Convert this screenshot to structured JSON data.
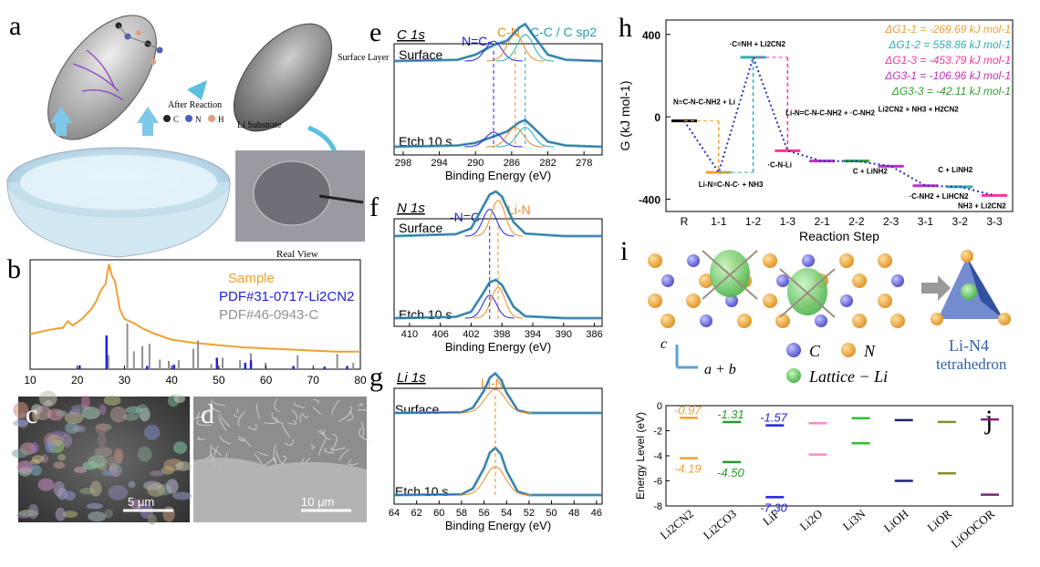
{
  "panels": {
    "a": {
      "label": "a",
      "reaction_caption": "After Reaction",
      "legend_atoms": [
        {
          "symbol": "C",
          "color": "#222222"
        },
        {
          "symbol": "N",
          "color": "#4a5fbf"
        },
        {
          "symbol": "H",
          "color": "#e0a080"
        }
      ],
      "surface_layer": "Surface Layer",
      "li_substrate": "Li Substrate",
      "real_view": "Real View"
    },
    "b": {
      "label": "b"
    },
    "c": {
      "label": "c",
      "scale": "5 μm"
    },
    "d": {
      "label": "d",
      "scale": "10 μm"
    },
    "e": {
      "label": "e",
      "title": "C 1s",
      "surface": "Surface",
      "etch": "Etch 10 s",
      "peaks": [
        "N=C-",
        "C-N",
        "C-C / C sp2"
      ]
    },
    "f": {
      "label": "f",
      "title": "N 1s",
      "surface": "Surface",
      "etch": "Etch 10 s",
      "peaks": [
        "-N=C",
        "Li-N"
      ]
    },
    "g": {
      "label": "g",
      "title": "Li 1s",
      "surface": "Surface",
      "etch": "Etch 10 s",
      "peaks": [
        "Li-N"
      ]
    },
    "h": {
      "label": "h"
    },
    "i": {
      "label": "i",
      "axis_c": "c",
      "axis_ab": "a + b",
      "legend": [
        "C",
        "N",
        "Lattice − Li"
      ],
      "tetra_title": "Li-N4",
      "tetra_sub": "tetrahedron"
    },
    "j": {
      "label": "j"
    }
  },
  "colors": {
    "orange": "#f0a030",
    "blue": "#2020e0",
    "gray": "#909090",
    "teal": "#30b0b0",
    "green": "#30a030",
    "magenta": "#e040c0",
    "pink": "#ff6699",
    "navy": "#222266",
    "olive": "#8a8a30",
    "purple": "#802080"
  },
  "chart_data": [
    {
      "id": "b",
      "type": "line",
      "title": "",
      "xlabel": "",
      "ylabel": "",
      "xlim": [
        10,
        80
      ],
      "xticks": [
        10,
        20,
        30,
        40,
        50,
        60,
        70,
        80
      ],
      "legend": [
        "Sample",
        "PDF#31-0717-Li2CN2",
        "PDF#46-0943-C"
      ],
      "series": [
        {
          "name": "Sample",
          "x": [
            10,
            14,
            17,
            18,
            19,
            21,
            23,
            24,
            25,
            26,
            26.7,
            27.3,
            28,
            29,
            30,
            32,
            34,
            36,
            38,
            40,
            45,
            50,
            55,
            60,
            65,
            70,
            75,
            80
          ],
          "y": [
            0.32,
            0.36,
            0.38,
            0.44,
            0.4,
            0.46,
            0.55,
            0.62,
            0.72,
            0.78,
            0.96,
            0.86,
            0.8,
            0.55,
            0.46,
            0.42,
            0.37,
            0.33,
            0.3,
            0.27,
            0.24,
            0.22,
            0.2,
            0.19,
            0.18,
            0.17,
            0.16,
            0.16
          ]
        },
        {
          "name": "PDF#31-0717-Li2CN2",
          "x": [
            20.5,
            26.2,
            34.8,
            40.5,
            49.6,
            55.6,
            56.8,
            65.8,
            72.4,
            77.2
          ],
          "y": [
            0.06,
            0.53,
            0.05,
            0.07,
            0.18,
            0.1,
            0.14,
            0.05,
            0.04,
            0.05
          ]
        },
        {
          "name": "PDF#46-0943-C",
          "x": [
            26.6,
            30.6,
            32.0,
            33.8,
            35.3,
            37.5,
            39.4,
            41.5,
            44.6,
            45.6,
            48.4,
            50.8,
            54.5,
            56.8,
            59.9,
            66.7,
            75.1,
            78.5
          ],
          "y": [
            0.22,
            0.72,
            0.28,
            0.36,
            0.4,
            0.15,
            0.13,
            0.14,
            0.32,
            0.45,
            0.08,
            0.18,
            0.14,
            0.25,
            0.1,
            0.22,
            0.24,
            0.1
          ]
        }
      ]
    },
    {
      "id": "e",
      "type": "line",
      "title": "C 1s",
      "xlabel": "Binding Energy (eV)",
      "ylabel": "",
      "xlim": [
        299,
        276
      ],
      "xticks": [
        298,
        294,
        290,
        286,
        282,
        278
      ],
      "peak_positions": [
        288.0,
        285.6,
        284.5
      ],
      "series": [
        {
          "name": "Surface",
          "x": [
            299,
            292,
            290,
            288,
            286.5,
            285.2,
            284.5,
            283.6,
            282,
            280,
            276
          ],
          "y": [
            0.1,
            0.12,
            0.2,
            0.35,
            0.42,
            0.62,
            0.68,
            0.5,
            0.2,
            0.12,
            0.1
          ]
        },
        {
          "name": "Etch 10 s",
          "x": [
            299,
            292,
            290,
            288,
            286.5,
            285.2,
            284.5,
            283.6,
            282,
            280,
            276
          ],
          "y": [
            0.1,
            0.12,
            0.16,
            0.26,
            0.34,
            0.48,
            0.52,
            0.4,
            0.18,
            0.12,
            0.1
          ]
        }
      ]
    },
    {
      "id": "f",
      "type": "line",
      "title": "N 1s",
      "xlabel": "Binding Energy (eV)",
      "ylabel": "",
      "xlim": [
        412,
        385
      ],
      "xticks": [
        410,
        406,
        402,
        398,
        394,
        390,
        386
      ],
      "peak_positions": [
        399.6,
        398.5
      ],
      "series": [
        {
          "name": "Surface",
          "x": [
            412,
            404,
            402,
            400.5,
            399.6,
            398.8,
            398,
            396.5,
            395,
            390,
            385
          ],
          "y": [
            0.1,
            0.13,
            0.22,
            0.55,
            0.75,
            0.8,
            0.72,
            0.32,
            0.14,
            0.1,
            0.1
          ]
        },
        {
          "name": "Etch 10 s",
          "x": [
            412,
            404,
            402,
            400.5,
            399.6,
            398.8,
            398,
            396.5,
            395,
            390,
            385
          ],
          "y": [
            0.1,
            0.12,
            0.2,
            0.48,
            0.66,
            0.7,
            0.62,
            0.28,
            0.13,
            0.1,
            0.1
          ]
        }
      ]
    },
    {
      "id": "g",
      "type": "line",
      "title": "Li 1s",
      "xlabel": "Binding Energy (eV)",
      "ylabel": "",
      "xlim": [
        64,
        45.5
      ],
      "xticks": [
        64,
        62,
        60,
        58,
        56,
        54,
        52,
        50,
        48,
        46
      ],
      "peak_positions": [
        55.0
      ],
      "series": [
        {
          "name": "Surface",
          "x": [
            64,
            58,
            57,
            56,
            55.5,
            55,
            54.5,
            54,
            53,
            52,
            45.5
          ],
          "y": [
            0.1,
            0.11,
            0.18,
            0.45,
            0.65,
            0.72,
            0.62,
            0.42,
            0.14,
            0.1,
            0.1
          ]
        },
        {
          "name": "Etch 10 s",
          "x": [
            64,
            58,
            57,
            56,
            55.5,
            55,
            54.5,
            54,
            53,
            52,
            45.5
          ],
          "y": [
            0.1,
            0.11,
            0.2,
            0.52,
            0.76,
            0.84,
            0.74,
            0.48,
            0.15,
            0.1,
            0.1
          ]
        }
      ]
    },
    {
      "id": "h",
      "type": "line",
      "title": "",
      "xlabel": "Reaction Step",
      "ylabel": "G (kJ mol-1)",
      "ylim": [
        -460,
        470
      ],
      "yticks": [
        400,
        0,
        -400
      ],
      "categories": [
        "R",
        "1-1",
        "1-2",
        "1-3",
        "2-1",
        "2-2",
        "2-3",
        "3-1",
        "3-2",
        "3-3"
      ],
      "values": [
        -20,
        -270,
        289,
        -165,
        -215,
        -215,
        -240,
        -335,
        -340,
        -382
      ],
      "annotations": [
        {
          "text": "ΔG1-1 = -269.69 kJ mol-1",
          "color": "#f0a030"
        },
        {
          "text": "ΔG1-2 = 558.86 kJ mol-1",
          "color": "#30b0b0"
        },
        {
          "text": "ΔG1-3 = -453.79 kJ mol-1",
          "color": "#ff3399"
        },
        {
          "text": "ΔG3-1 = -106.96 kJ mol-1",
          "color": "#c030c0"
        },
        {
          "text": "ΔG3-3 = -42.11 kJ mol-1",
          "color": "#30a030"
        }
      ],
      "species_labels": [
        "N≡C-N-C-NH2 + Li",
        "Li-N=C-N-C· + NH3",
        "·C=NH + Li2CN2",
        "·C-N-Li",
        "Li-N=C-N-C-NH2 + ·C-NH2",
        "C + LiNH2",
        "Li2CN2 + NH3 + H2CN2",
        "·C-NH2 + LiHCN2",
        "C + LiNH2",
        "NH3 + Li2CN2"
      ]
    },
    {
      "id": "j",
      "type": "scatter",
      "title": "",
      "xlabel": "",
      "ylabel": "Energy Level (eV)",
      "ylim": [
        -8,
        0
      ],
      "yticks": [
        0,
        -2,
        -4,
        -6,
        -8
      ],
      "categories": [
        "Li2CN2",
        "Li2CO3",
        "LiF",
        "Li2O",
        "Li3N",
        "LiOH",
        "LiOR",
        "LiOOCOR"
      ],
      "lumo": [
        -0.97,
        -1.31,
        -1.57,
        -1.4,
        -1.0,
        -1.15,
        -1.3,
        -1.1
      ],
      "homo": [
        -4.19,
        -4.5,
        -7.3,
        -3.9,
        -3.0,
        -6.0,
        -5.4,
        -7.1
      ],
      "labels_lumo": [
        "-0.97",
        "-1.31",
        "-1.57"
      ],
      "labels_homo": [
        "-4.19",
        "-4.50",
        "-7.30"
      ],
      "colors": [
        "#f0a030",
        "#2a9a2a",
        "#2020e0",
        "#ff88cc",
        "#30c030",
        "#202070",
        "#8a8a30",
        "#802080"
      ]
    }
  ]
}
